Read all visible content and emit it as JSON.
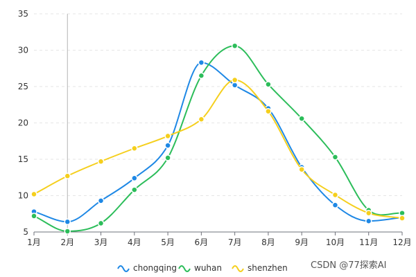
{
  "chart_data": {
    "type": "line",
    "smooth": true,
    "categories": [
      "1月",
      "2月",
      "3月",
      "4月",
      "5月",
      "6月",
      "7月",
      "8月",
      "9月",
      "10月",
      "11月",
      "12月"
    ],
    "series": [
      {
        "name": "chongqing",
        "color": "#1e88e5",
        "values": [
          7.8,
          6.4,
          9.3,
          12.4,
          16.9,
          28.3,
          25.2,
          22.0,
          13.9,
          8.7,
          6.5,
          7.0
        ]
      },
      {
        "name": "wuhan",
        "color": "#2cbd5a",
        "values": [
          7.2,
          5.1,
          6.2,
          10.8,
          15.2,
          26.5,
          30.6,
          25.3,
          20.6,
          15.3,
          8.0,
          7.6
        ]
      },
      {
        "name": "shenzhen",
        "color": "#f5cf1d",
        "values": [
          10.2,
          12.7,
          14.7,
          16.5,
          18.2,
          20.5,
          25.9,
          21.6,
          13.6,
          10.1,
          7.6,
          6.9
        ]
      }
    ],
    "ylim": [
      5,
      35
    ],
    "yticks": [
      5,
      10,
      15,
      20,
      25,
      30,
      35
    ],
    "grid": "horizontal-dashed",
    "highlight_category": "2月",
    "legend_position": "bottom-center"
  },
  "watermark": "CSDN @77探索AI"
}
